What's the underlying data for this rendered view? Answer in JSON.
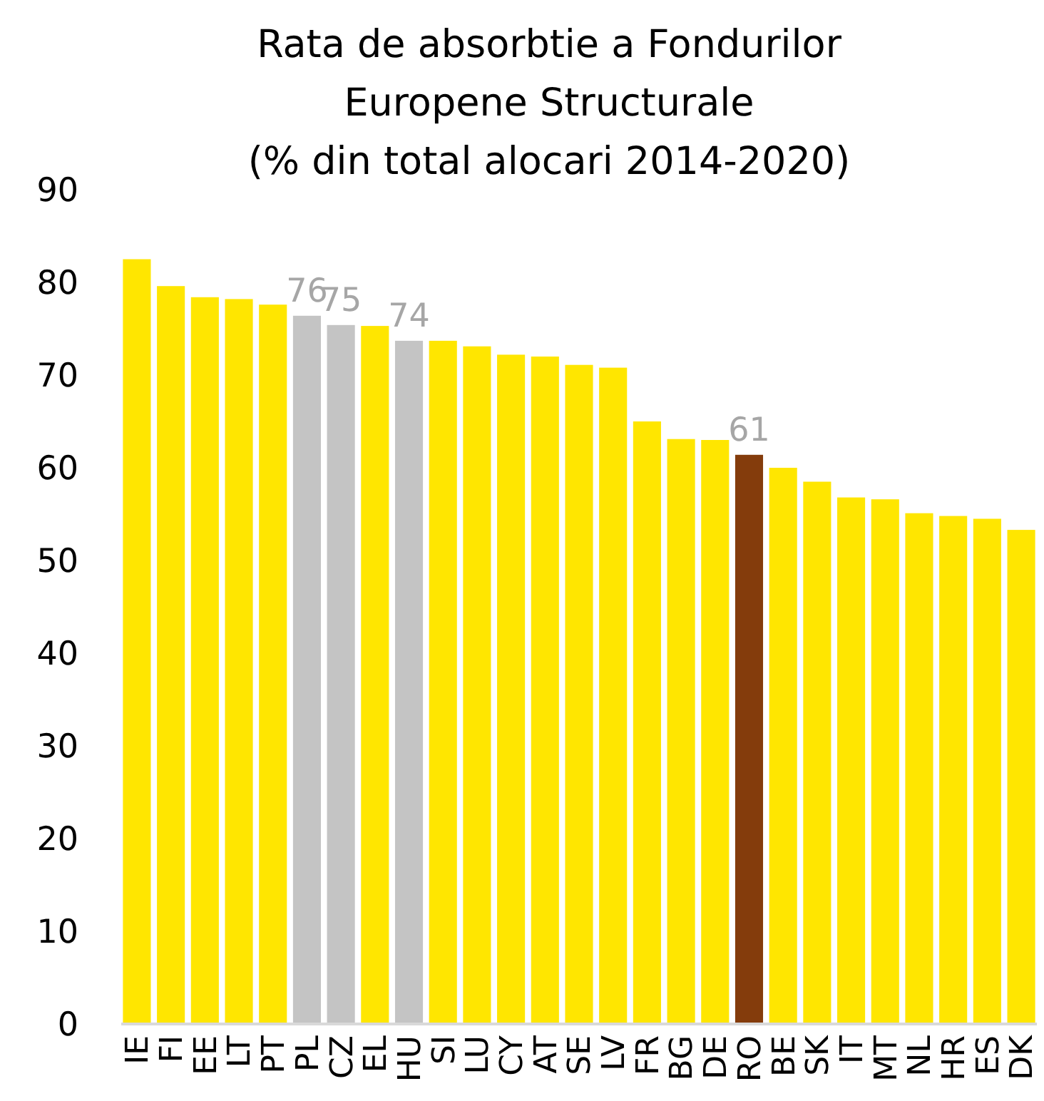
{
  "chart_data": {
    "type": "bar",
    "title": "Rata de absorbtie a Fondurilor\nEuropene Structurale\n(% din total alocari 2014-2020)",
    "categories": [
      "IE",
      "FI",
      "EE",
      "LT",
      "PT",
      "PL",
      "CZ",
      "EL",
      "HU",
      "SI",
      "LU",
      "CY",
      "AT",
      "SE",
      "LV",
      "FR",
      "BG",
      "DE",
      "RO",
      "BE",
      "SK",
      "IT",
      "MT",
      "NL",
      "HR",
      "ES",
      "DK"
    ],
    "values": [
      82.5,
      79.6,
      78.4,
      78.2,
      77.6,
      76.4,
      75.4,
      75.3,
      73.7,
      73.7,
      73.1,
      72.2,
      72.0,
      71.1,
      70.8,
      65.0,
      63.1,
      63.0,
      61.4,
      60.0,
      58.5,
      56.8,
      56.6,
      55.1,
      54.8,
      54.5,
      53.3
    ],
    "colors": [
      "#ffe600",
      "#ffe600",
      "#ffe600",
      "#ffe600",
      "#ffe600",
      "#c4c4c4",
      "#c4c4c4",
      "#ffe600",
      "#c4c4c4",
      "#ffe600",
      "#ffe600",
      "#ffe600",
      "#ffe600",
      "#ffe600",
      "#ffe600",
      "#ffe600",
      "#ffe600",
      "#ffe600",
      "#843c0c",
      "#ffe600",
      "#ffe600",
      "#ffe600",
      "#ffe600",
      "#ffe600",
      "#ffe600",
      "#ffe600",
      "#ffe600"
    ],
    "value_labels": [
      null,
      null,
      null,
      null,
      null,
      "76",
      "75",
      null,
      "74",
      null,
      null,
      null,
      null,
      null,
      null,
      null,
      null,
      null,
      "61",
      null,
      null,
      null,
      null,
      null,
      null,
      null,
      null
    ],
    "ylim": [
      0,
      90
    ],
    "yticks": [
      0,
      10,
      20,
      30,
      40,
      50,
      60,
      70,
      80,
      90
    ],
    "grid": false
  }
}
